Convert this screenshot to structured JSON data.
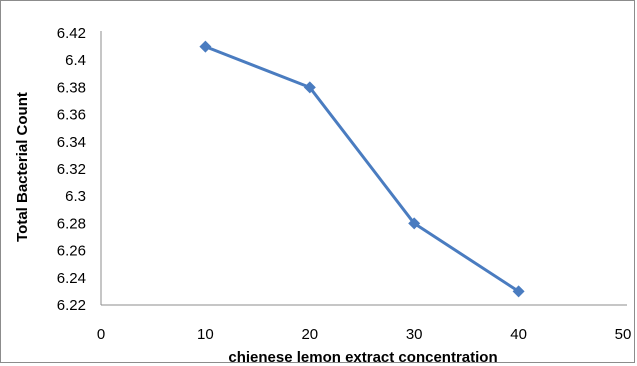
{
  "chart_data": {
    "type": "line",
    "title": "",
    "xlabel": "chienese lemon extract concentration",
    "ylabel": "Total Bacterial Count",
    "xlim": [
      0,
      50
    ],
    "ylim": [
      6.22,
      6.42
    ],
    "x_ticks": [
      "0",
      "10",
      "20",
      "30",
      "40",
      "50"
    ],
    "y_ticks": [
      "6.22",
      "6.24",
      "6.26",
      "6.28",
      "6.3",
      "6.32",
      "6.34",
      "6.36",
      "6.38",
      "6.4",
      "6.42"
    ],
    "grid": false,
    "legend": "none",
    "series": [
      {
        "x": [
          10,
          20,
          30,
          40
        ],
        "values": [
          6.41,
          6.38,
          6.28,
          6.23
        ],
        "color": "#4a7cc0",
        "marker": "diamond"
      }
    ]
  }
}
